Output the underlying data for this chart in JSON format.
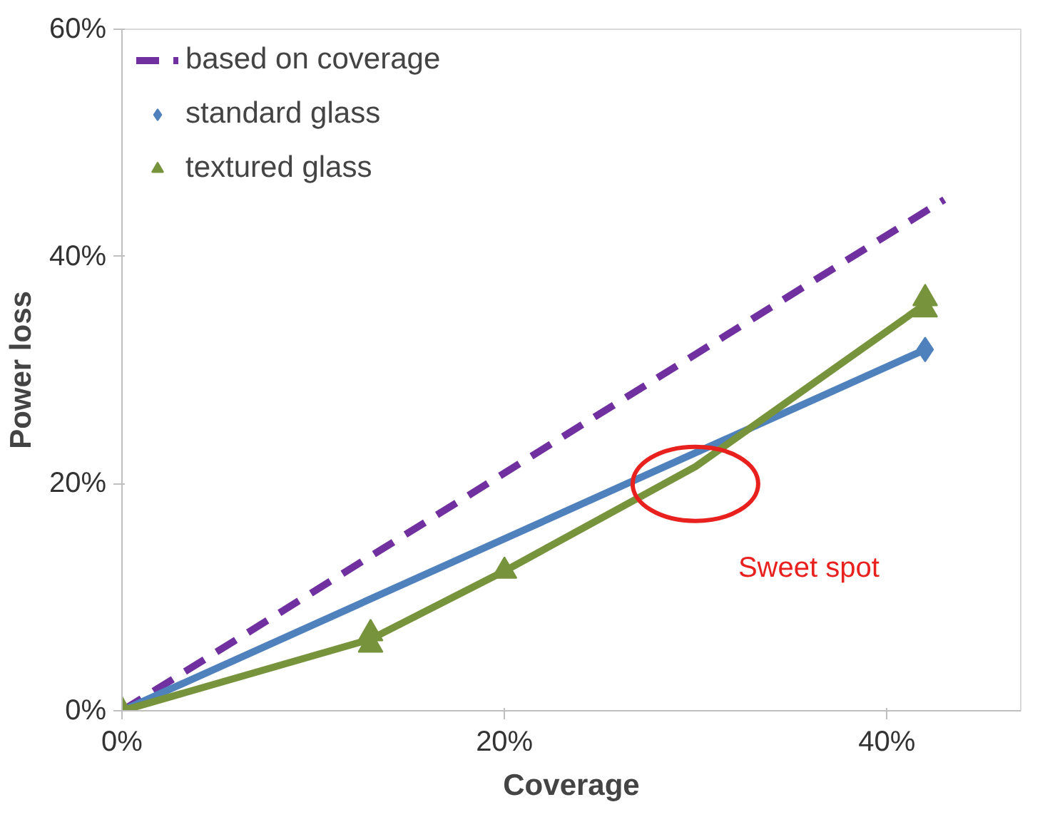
{
  "chart_data": {
    "type": "line",
    "xlabel": "Coverage",
    "ylabel": "Power loss",
    "xlim": [
      0,
      47
    ],
    "ylim": [
      0,
      60
    ],
    "xticks": [
      {
        "value": 0,
        "label": "0%"
      },
      {
        "value": 20,
        "label": "20%"
      },
      {
        "value": 40,
        "label": "40%"
      }
    ],
    "yticks": [
      {
        "value": 0,
        "label": "0%"
      },
      {
        "value": 20,
        "label": "20%"
      },
      {
        "value": 40,
        "label": "40%"
      },
      {
        "value": 60,
        "label": "60%"
      }
    ],
    "grid": false,
    "legend": "top left",
    "series": [
      {
        "name": "based on coverage",
        "color": "#7030a0",
        "line_style": "dashed",
        "marker": "none",
        "x": [
          0,
          43
        ],
        "values": [
          0,
          45
        ]
      },
      {
        "color": "#4f81bd",
        "line_style": "solid",
        "marker": "none",
        "x": [
          0,
          42
        ],
        "values": [
          0,
          31.8
        ]
      },
      {
        "color": "#77933c",
        "line_style": "solid",
        "marker": "none",
        "x": [
          0,
          13,
          20,
          30,
          42
        ],
        "values": [
          0,
          6.3,
          12.3,
          21.5,
          35.8
        ]
      },
      {
        "name": "standard glass",
        "type": "scatter",
        "color": "#4f81bd",
        "marker": "diamond",
        "x": [
          42
        ],
        "values": [
          31.8
        ]
      },
      {
        "name": "textured glass",
        "type": "scatter",
        "color": "#77933c",
        "marker": "triangle",
        "x": [
          0,
          13,
          13,
          20,
          42,
          42
        ],
        "values": [
          0,
          5.8,
          6.8,
          12.3,
          35.3,
          36.3
        ]
      }
    ],
    "annotations": [
      "Sweet spot"
    ]
  }
}
